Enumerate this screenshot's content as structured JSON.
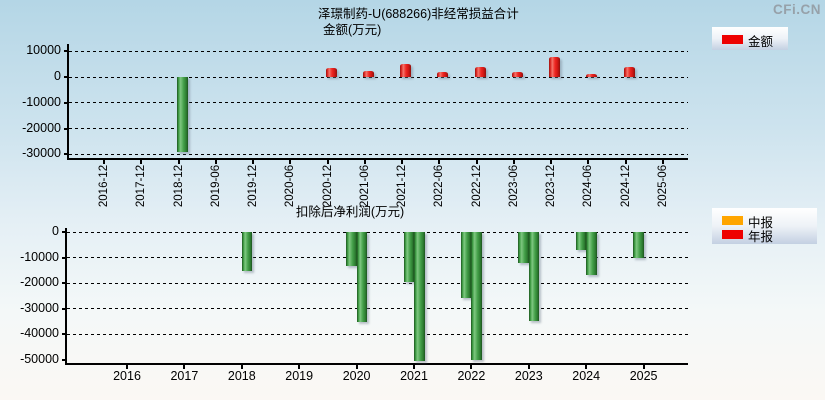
{
  "logo": "CFi.CN",
  "colors": {
    "bar_red": "#ee1c22",
    "bar_green": "#3f9d44",
    "legend_amount": "#ee0000",
    "legend_interim": "#ffa500",
    "legend_annual": "#ee0000"
  },
  "chart_data": [
    {
      "type": "bar",
      "title": "泽璟制药-U(688266)非经常损益合计",
      "subtitle": "金额(万元)",
      "ylabel": "金额(万元)",
      "legend": [
        {
          "name": "金额",
          "color": "#ee0000"
        }
      ],
      "legend_position": "top-right",
      "grid": "horizontal-dashed",
      "y_ticks": [
        10000,
        0,
        -10000,
        -20000,
        -30000
      ],
      "ylim": [
        -32000,
        12000
      ],
      "x_labels": [
        "2016-12",
        "2017-12",
        "2018-12",
        "2019-06",
        "2019-12",
        "2020-06",
        "2020-12",
        "2021-06",
        "2021-12",
        "2022-06",
        "2022-12",
        "2023-06",
        "2023-12",
        "2024-06",
        "2024-12",
        "2025-06"
      ],
      "series": [
        {
          "name": "金额",
          "values": [
            null,
            null,
            -29200,
            null,
            null,
            null,
            3500,
            2300,
            4900,
            1800,
            4000,
            1900,
            7600,
            1100,
            3700,
            null
          ]
        }
      ],
      "note": "positive bars red, negative bars green"
    },
    {
      "type": "bar",
      "title": "扣除后净利润(万元)",
      "legend": [
        {
          "name": "中报",
          "color": "#ffa500"
        },
        {
          "name": "年报",
          "color": "#ee0000"
        }
      ],
      "legend_position": "top-right",
      "grid": "horizontal-dashed",
      "y_ticks": [
        0,
        -10000,
        -20000,
        -30000,
        -40000,
        -50000
      ],
      "ylim": [
        -52000,
        0
      ],
      "x_labels": [
        "2016",
        "2017",
        "2018",
        "2019",
        "2020",
        "2021",
        "2022",
        "2023",
        "2024",
        "2025"
      ],
      "series": [
        {
          "name": "中报",
          "key": "interim",
          "values": [
            null,
            null,
            null,
            null,
            -13500,
            -19600,
            -25700,
            -12200,
            -7000,
            -10300
          ]
        },
        {
          "name": "年报",
          "key": "annual",
          "values": [
            null,
            null,
            -15300,
            null,
            -35300,
            -50600,
            -50000,
            -34800,
            -16900,
            null
          ]
        }
      ],
      "note": "all plotted values negative, drawn green"
    }
  ]
}
